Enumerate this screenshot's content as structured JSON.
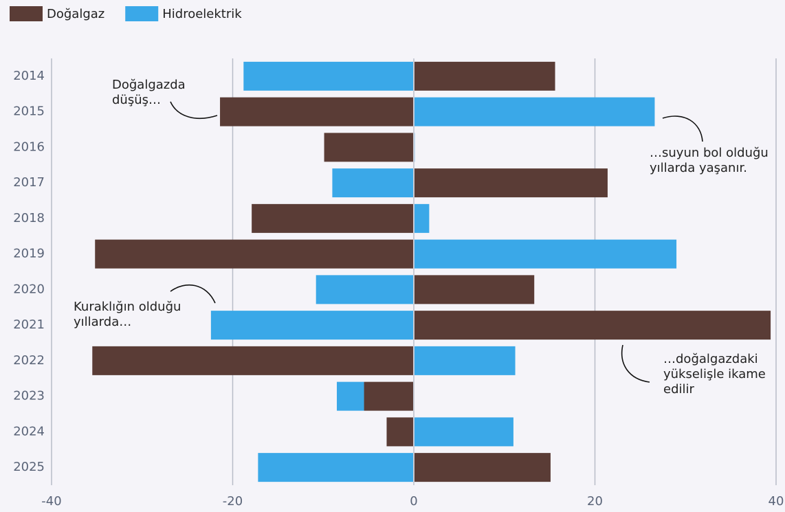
{
  "chart_data": {
    "type": "stacked-barh",
    "categories": [
      "2014",
      "2015",
      "2016",
      "2017",
      "2018",
      "2019",
      "2020",
      "2021",
      "2022",
      "2023",
      "2024",
      "2025"
    ],
    "series": [
      {
        "name": "Doğalgaz",
        "color": "#5a3c36",
        "values": [
          15.6,
          -21.4,
          -9.9,
          21.4,
          -17.9,
          -35.2,
          13.3,
          39.4,
          -35.5,
          -5.5,
          -3.0,
          15.1
        ]
      },
      {
        "name": "Hidroelektrik",
        "color": "#3aa8e8",
        "values": [
          -18.8,
          26.6,
          0.1,
          -9.0,
          1.7,
          29.0,
          -10.8,
          -22.4,
          11.2,
          -3.0,
          11.0,
          -17.2
        ]
      }
    ],
    "xlim": [
      -40,
      40
    ],
    "xticks": [
      -40,
      -20,
      0,
      20,
      40
    ],
    "grid": true,
    "legend": "top-left",
    "annotations": [
      {
        "lines": [
          "Doğalgazda",
          "düşüş…"
        ]
      },
      {
        "lines": [
          "…suyun bol olduğu",
          "yıllarda yaşanır."
        ]
      },
      {
        "lines": [
          "Kuraklığın olduğu",
          "yıllarda…"
        ]
      },
      {
        "lines": [
          "…doğalgazdaki",
          "yükselişle ikame",
          "edilir"
        ]
      }
    ]
  }
}
